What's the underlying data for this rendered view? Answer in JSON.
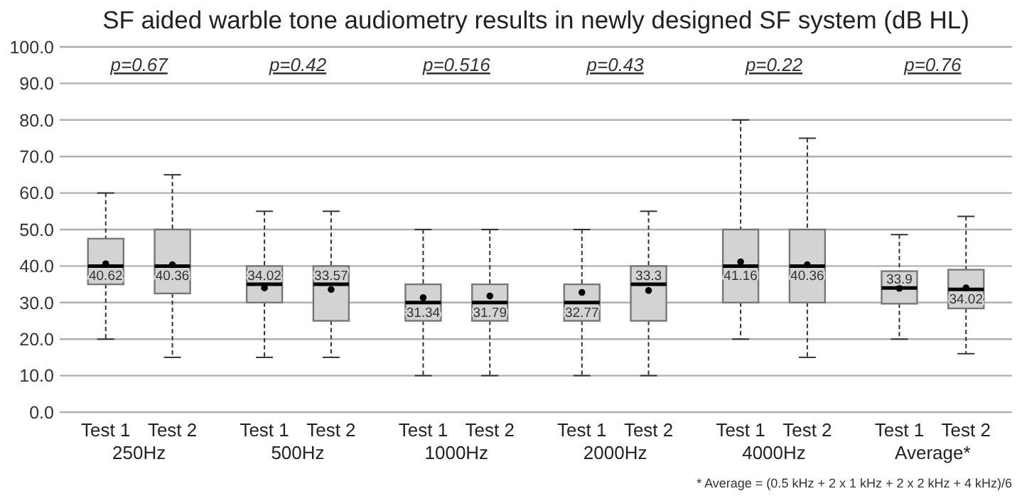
{
  "chart_data": {
    "type": "box",
    "title": "SF aided warble tone audiometry results in newly designed SF system (dB HL)",
    "categories": [
      "Test 1",
      "Test 2",
      "Test 1",
      "Test 2",
      "Test 1",
      "Test 2",
      "Test 1",
      "Test 2",
      "Test 1",
      "Test 2",
      "Test 1",
      "Test 2"
    ],
    "color": "#d3d3d3",
    "boxes": [
      {
        "low": 20,
        "q1": 35,
        "median": 40,
        "q3": 47.5,
        "high": 60,
        "mean": 40.62
      },
      {
        "low": 15,
        "q1": 32.5,
        "median": 40,
        "q3": 50,
        "high": 65,
        "mean": 40.36
      },
      {
        "low": 15,
        "q1": 30,
        "median": 35,
        "q3": 40,
        "high": 55,
        "mean": 34.02
      },
      {
        "low": 15,
        "q1": 25,
        "median": 35,
        "q3": 40,
        "high": 55,
        "mean": 33.57
      },
      {
        "low": 10,
        "q1": 25,
        "median": 30,
        "q3": 35,
        "high": 50,
        "mean": 31.34
      },
      {
        "low": 10,
        "q1": 25,
        "median": 30,
        "q3": 35,
        "high": 50,
        "mean": 31.79
      },
      {
        "low": 10,
        "q1": 25,
        "median": 30,
        "q3": 35,
        "high": 50,
        "mean": 32.77
      },
      {
        "low": 10,
        "q1": 25,
        "median": 35,
        "q3": 40,
        "high": 55,
        "mean": 33.3
      },
      {
        "low": 20,
        "q1": 30,
        "median": 40,
        "q3": 50,
        "high": 80,
        "mean": 41.16
      },
      {
        "low": 15,
        "q1": 30,
        "median": 40,
        "q3": 50,
        "high": 75,
        "mean": 40.36
      },
      {
        "low": 20,
        "q1": 29.7,
        "median": 34,
        "q3": 38.6,
        "high": 48.6,
        "mean": 33.9
      },
      {
        "low": 16,
        "q1": 28.4,
        "median": 33.6,
        "q3": 39,
        "high": 53.6,
        "mean": 34.02
      }
    ],
    "value_labels": [
      "40.62",
      "40.36",
      "34.02",
      "33.57",
      "31.34",
      "31.79",
      "32.77",
      "33.3",
      "41.16",
      "40.36",
      "33.9",
      "34.02"
    ],
    "ylim": [
      0,
      100
    ],
    "yticks": [
      {
        "value": 0,
        "label": "0.0"
      },
      {
        "value": 10,
        "label": "10.0"
      },
      {
        "value": 20,
        "label": "20.0"
      },
      {
        "value": 30,
        "label": "30.0"
      },
      {
        "value": 40,
        "label": "40.0"
      },
      {
        "value": 50,
        "label": "50.0"
      },
      {
        "value": 60,
        "label": "60.0"
      },
      {
        "value": 70,
        "label": "70.0"
      },
      {
        "value": 80,
        "label": "80.0"
      },
      {
        "value": 90,
        "label": "90.0"
      },
      {
        "value": 100,
        "label": "100.0"
      }
    ],
    "grid": "y",
    "annotations": [
      "p=0.67",
      "p=0.42",
      "p=0.516",
      "p=0.43",
      "p=0.22",
      "p=0.76",
      "250Hz",
      "500Hz",
      "1000Hz",
      "2000Hz",
      "4000Hz",
      "Average*",
      "* Average = (0.5 kHz + 2 x 1 kHz + 2 x 2 kHz + 4 kHz)/6"
    ]
  }
}
